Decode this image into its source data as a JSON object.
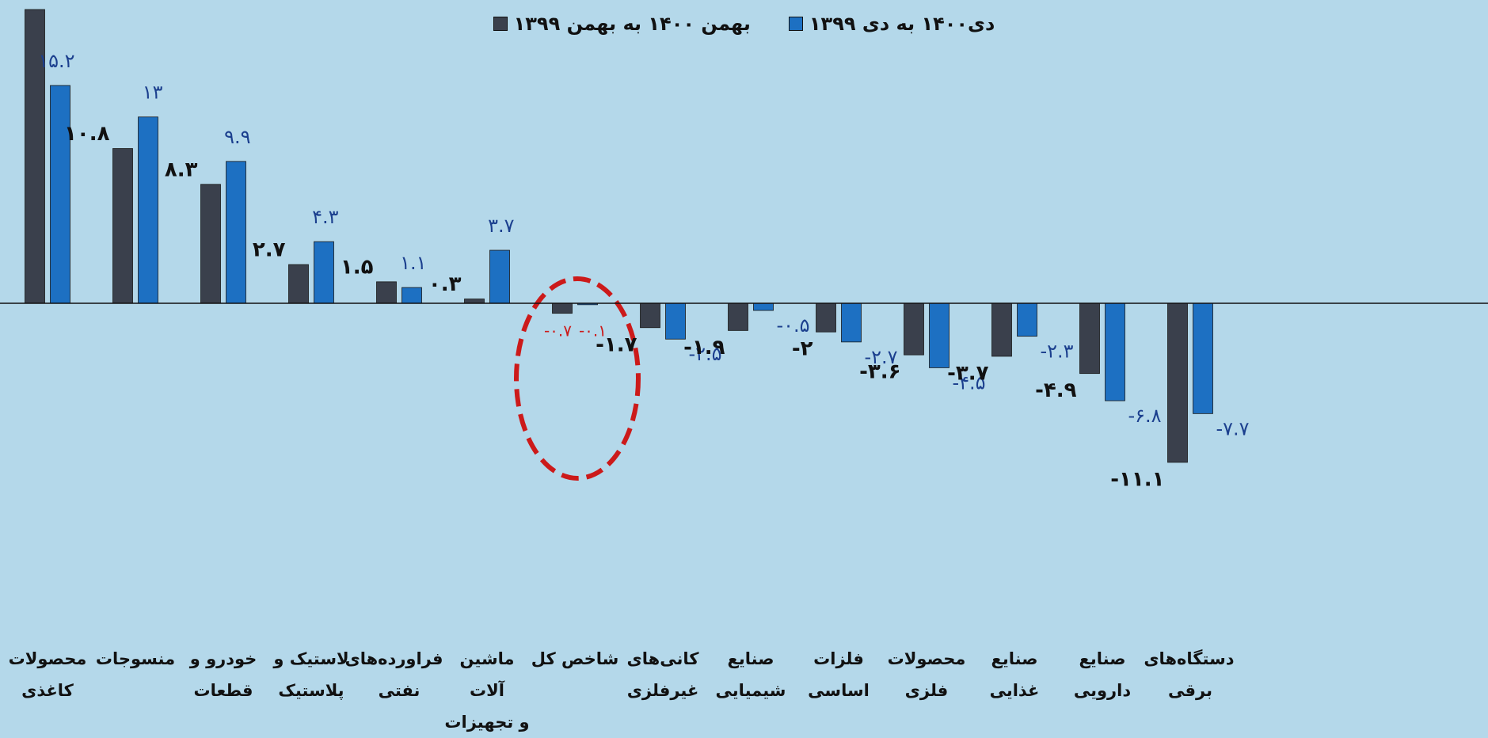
{
  "chart_data": {
    "type": "bar",
    "categories": [
      "محصولات\nکاغذی",
      "منسوجات",
      "خودرو و\nقطعات",
      "لاستیک و\nپلاستیک",
      "فراورده‌های\nنفتی",
      "ماشین آلات\nو تجهیزات",
      "شاخص کل",
      "کانی‌های\nغیرفلزی",
      "صنایع\nشیمیایی",
      "فلزات\nاساسی",
      "محصولات\nفلزی",
      "صنایع\nغذایی",
      "صنایع\nدارویی",
      "دستگاه‌های\nبرقی"
    ],
    "series": [
      {
        "name": "بهمن ۱۴۰۰ به بهمن ۱۳۹۹",
        "color": "#3a404c",
        "values": [
          20.5,
          10.8,
          8.3,
          2.7,
          1.5,
          0.3,
          -0.7,
          -1.7,
          -1.9,
          -2,
          -3.6,
          -3.7,
          -4.9,
          -11.1
        ],
        "value_labels": [
          null,
          "۱۰.۸",
          "۸.۳",
          "۲.۷",
          "۱.۵",
          "۰.۳",
          "-۰.۷",
          "-۱.۷",
          "-۱.۹",
          "-۲",
          "-۳.۶",
          "-۳.۷",
          "-۴.۹",
          "-۱۱.۱"
        ]
      },
      {
        "name": "دی۱۴۰۰ به دی ۱۳۹۹",
        "color": "#1d70c2",
        "values": [
          15.2,
          13,
          9.9,
          4.3,
          1.1,
          3.7,
          -0.1,
          -2.5,
          -0.5,
          -2.7,
          -4.5,
          -2.3,
          -6.8,
          -7.7
        ],
        "value_labels": [
          "۱۵.۲",
          "۱۳",
          "۹.۹",
          "۴.۳",
          "۱.۱",
          "۳.۷",
          "-۰.۱",
          "-۲.۵",
          "-۰.۵",
          "-۲.۷",
          "-۴.۵",
          "-۲.۳",
          "-۶.۸",
          "-۷.۷"
        ]
      }
    ],
    "ylim": [
      -14,
      20.5
    ],
    "highlight_index": 6,
    "highlight_color": "#cc1a1a"
  }
}
